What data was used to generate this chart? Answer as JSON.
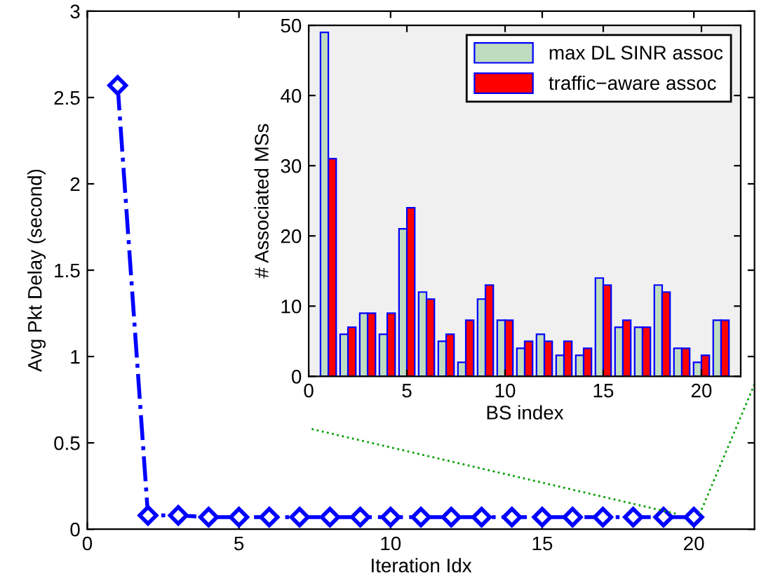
{
  "chart_data": [
    {
      "type": "line",
      "xlabel": "Iteration Idx",
      "ylabel": "Avg Pkt Delay (second)",
      "x": [
        1,
        2,
        3,
        4,
        5,
        6,
        7,
        8,
        9,
        10,
        11,
        12,
        13,
        14,
        15,
        16,
        17,
        18,
        19,
        20
      ],
      "series": [
        {
          "color": "#0000ff",
          "values": [
            2.57,
            0.08,
            0.08,
            0.07,
            0.07,
            0.07,
            0.07,
            0.07,
            0.07,
            0.07,
            0.07,
            0.07,
            0.07,
            0.07,
            0.07,
            0.07,
            0.07,
            0.07,
            0.07,
            0.07
          ]
        },
        {
          "color": "#00a000",
          "x": [
            7.4,
            19.4
          ],
          "values": [
            0.58,
            0.09
          ],
          "line_style": "dotted",
          "marker": "none"
        },
        {
          "color": "#00a000",
          "x": [
            22,
            20.2
          ],
          "values": [
            0.84,
            0.09
          ],
          "line_style": "dotted",
          "marker": "none"
        }
      ],
      "xlim": [
        0,
        22
      ],
      "ylim": [
        0,
        3
      ],
      "xticks": [
        0,
        5,
        10,
        15,
        20
      ],
      "yticks": [
        0,
        0.5,
        1,
        1.5,
        2,
        2.5,
        3
      ],
      "marker": "diamond",
      "line_style": "dashed",
      "grid": false,
      "legend": false
    },
    {
      "type": "bar",
      "xlabel": "BS index",
      "ylabel": "# Associated MSs",
      "x": [
        1,
        2,
        3,
        4,
        5,
        6,
        7,
        8,
        9,
        10,
        11,
        12,
        13,
        14,
        15,
        16,
        17,
        18,
        19,
        20,
        21
      ],
      "series": [
        {
          "name": "max DL SINR assoc",
          "color": "#c0dcc0",
          "values": [
            49,
            6,
            9,
            6,
            21,
            12,
            5,
            2,
            11,
            8,
            4,
            6,
            3,
            3,
            14,
            7,
            7,
            13,
            4,
            2,
            8
          ]
        },
        {
          "name": "traffic−aware assoc",
          "color": "#ff0000",
          "values": [
            31,
            7,
            9,
            9,
            24,
            11,
            6,
            8,
            13,
            8,
            5,
            5,
            5,
            4,
            13,
            8,
            7,
            12,
            4,
            3,
            8
          ]
        }
      ],
      "xlim": [
        0,
        22
      ],
      "ylim": [
        0,
        50
      ],
      "xticks": [
        0,
        5,
        10,
        15,
        20
      ],
      "yticks": [
        0,
        10,
        20,
        30,
        40,
        50
      ],
      "grid": false,
      "legend": "top right"
    }
  ]
}
